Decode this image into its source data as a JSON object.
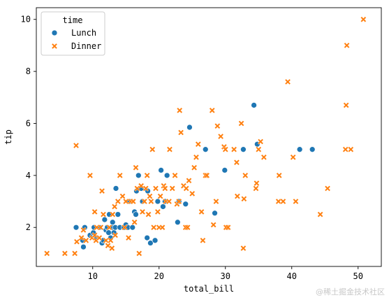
{
  "watermark": "@稀土掘金技术社区",
  "chart_data": {
    "type": "scatter",
    "xlabel": "total_bill",
    "ylabel": "tip",
    "xlim": [
      1.5,
      53.5
    ],
    "ylim": [
      0.5,
      10.45
    ],
    "xticks": [
      10,
      20,
      30,
      40,
      50
    ],
    "yticks": [
      2,
      4,
      6,
      8,
      10
    ],
    "grid": false,
    "legend": {
      "title": "time",
      "placement": "top-left"
    },
    "colors": {
      "Lunch": "#1f77b4",
      "Dinner": "#ff7f0e"
    },
    "series": [
      {
        "name": "Lunch",
        "marker": "circle",
        "points": [
          [
            7.5,
            2.0
          ],
          [
            8.5,
            1.5
          ],
          [
            8.6,
            1.25
          ],
          [
            8.8,
            2.0
          ],
          [
            9.6,
            1.7
          ],
          [
            10.1,
            1.8
          ],
          [
            10.2,
            2.0
          ],
          [
            10.6,
            1.6
          ],
          [
            11.0,
            2.0
          ],
          [
            11.4,
            1.4
          ],
          [
            11.6,
            1.5
          ],
          [
            11.8,
            2.3
          ],
          [
            12.0,
            1.9
          ],
          [
            12.2,
            2.0
          ],
          [
            12.4,
            1.8
          ],
          [
            12.5,
            2.5
          ],
          [
            12.7,
            1.6
          ],
          [
            12.9,
            2.0
          ],
          [
            13.0,
            2.2
          ],
          [
            13.2,
            1.8
          ],
          [
            13.4,
            2.0
          ],
          [
            13.5,
            3.5
          ],
          [
            13.8,
            2.5
          ],
          [
            14.1,
            2.0
          ],
          [
            14.7,
            2.0
          ],
          [
            15.0,
            2.1
          ],
          [
            15.3,
            2.0
          ],
          [
            15.5,
            3.0
          ],
          [
            16.0,
            2.0
          ],
          [
            16.3,
            2.6
          ],
          [
            16.5,
            2.5
          ],
          [
            16.6,
            3.4
          ],
          [
            16.9,
            4.0
          ],
          [
            17.3,
            3.5
          ],
          [
            17.5,
            3.0
          ],
          [
            18.2,
            1.6
          ],
          [
            18.3,
            3.4
          ],
          [
            18.7,
            1.4
          ],
          [
            19.4,
            1.5
          ],
          [
            19.8,
            3.0
          ],
          [
            20.3,
            4.2
          ],
          [
            20.6,
            2.8
          ],
          [
            20.9,
            3.0
          ],
          [
            21.2,
            4.0
          ],
          [
            22.8,
            2.2
          ],
          [
            23.0,
            3.0
          ],
          [
            24.0,
            2.9
          ],
          [
            24.6,
            5.85
          ],
          [
            27.0,
            5.0
          ],
          [
            28.4,
            2.55
          ],
          [
            29.9,
            4.2
          ],
          [
            32.7,
            5.0
          ],
          [
            34.3,
            6.7
          ],
          [
            34.8,
            5.2
          ],
          [
            41.2,
            5.0
          ],
          [
            43.1,
            5.0
          ]
        ]
      },
      {
        "name": "Dinner",
        "marker": "x",
        "points": [
          [
            3.1,
            1.0
          ],
          [
            5.8,
            1.0
          ],
          [
            7.3,
            1.0
          ],
          [
            7.6,
            1.45
          ],
          [
            7.5,
            5.15
          ],
          [
            8.3,
            1.6
          ],
          [
            8.6,
            1.9
          ],
          [
            9.0,
            1.5
          ],
          [
            9.6,
            4.0
          ],
          [
            9.9,
            1.6
          ],
          [
            10.3,
            1.7
          ],
          [
            10.3,
            2.6
          ],
          [
            10.5,
            1.5
          ],
          [
            10.6,
            2.0
          ],
          [
            11.0,
            1.6
          ],
          [
            11.2,
            2.0
          ],
          [
            11.4,
            3.4
          ],
          [
            11.6,
            2.5
          ],
          [
            12.0,
            1.5
          ],
          [
            12.3,
            1.3
          ],
          [
            12.5,
            2.0
          ],
          [
            12.7,
            1.5
          ],
          [
            12.9,
            1.2
          ],
          [
            13.0,
            2.5
          ],
          [
            13.3,
            2.8
          ],
          [
            13.4,
            1.7
          ],
          [
            13.8,
            3.0
          ],
          [
            14.1,
            4.0
          ],
          [
            14.5,
            3.2
          ],
          [
            14.8,
            2.0
          ],
          [
            15.0,
            3.0
          ],
          [
            15.4,
            1.6
          ],
          [
            15.7,
            3.0
          ],
          [
            16.1,
            3.0
          ],
          [
            16.3,
            2.2
          ],
          [
            16.5,
            4.3
          ],
          [
            16.7,
            3.5
          ],
          [
            17.0,
            1.0
          ],
          [
            17.3,
            3.6
          ],
          [
            17.5,
            2.6
          ],
          [
            17.8,
            3.0
          ],
          [
            18.0,
            3.5
          ],
          [
            18.2,
            4.0
          ],
          [
            18.4,
            2.5
          ],
          [
            18.6,
            3.2
          ],
          [
            18.8,
            3.0
          ],
          [
            19.0,
            5.0
          ],
          [
            19.2,
            2.0
          ],
          [
            19.5,
            3.5
          ],
          [
            19.8,
            2.6
          ],
          [
            20.0,
            2.0
          ],
          [
            20.2,
            3.2
          ],
          [
            20.5,
            2.0
          ],
          [
            20.7,
            3.6
          ],
          [
            20.9,
            3.5
          ],
          [
            21.0,
            3.0
          ],
          [
            21.5,
            3.0
          ],
          [
            21.6,
            5.0
          ],
          [
            22.0,
            3.5
          ],
          [
            22.4,
            4.0
          ],
          [
            22.7,
            2.9
          ],
          [
            23.0,
            3.0
          ],
          [
            23.1,
            6.5
          ],
          [
            23.3,
            5.65
          ],
          [
            23.7,
            3.6
          ],
          [
            24.0,
            2.0
          ],
          [
            24.1,
            3.5
          ],
          [
            24.3,
            2.0
          ],
          [
            24.5,
            3.8
          ],
          [
            25.0,
            3.3
          ],
          [
            25.3,
            4.3
          ],
          [
            25.6,
            4.7
          ],
          [
            25.9,
            5.2
          ],
          [
            26.4,
            2.6
          ],
          [
            26.6,
            1.5
          ],
          [
            27.0,
            4.0
          ],
          [
            27.2,
            4.0
          ],
          [
            28.0,
            6.5
          ],
          [
            28.2,
            2.1
          ],
          [
            28.6,
            3.0
          ],
          [
            28.8,
            5.9
          ],
          [
            29.3,
            5.5
          ],
          [
            29.8,
            5.1
          ],
          [
            30.0,
            5.0
          ],
          [
            30.1,
            2.0
          ],
          [
            30.4,
            2.0
          ],
          [
            31.3,
            5.0
          ],
          [
            31.7,
            4.5
          ],
          [
            31.8,
            3.2
          ],
          [
            32.4,
            6.0
          ],
          [
            32.7,
            1.2
          ],
          [
            32.8,
            3.1
          ],
          [
            33.0,
            4.0
          ],
          [
            34.6,
            3.5
          ],
          [
            34.7,
            3.7
          ],
          [
            35.0,
            5.0
          ],
          [
            35.3,
            5.3
          ],
          [
            35.8,
            4.7
          ],
          [
            38.0,
            3.0
          ],
          [
            38.1,
            4.0
          ],
          [
            38.7,
            3.0
          ],
          [
            39.4,
            7.6
          ],
          [
            40.2,
            4.7
          ],
          [
            40.6,
            3.0
          ],
          [
            44.3,
            2.5
          ],
          [
            45.4,
            3.5
          ],
          [
            48.1,
            5.0
          ],
          [
            48.2,
            6.7
          ],
          [
            48.3,
            9.0
          ],
          [
            48.9,
            5.0
          ],
          [
            50.8,
            10.0
          ]
        ]
      }
    ]
  }
}
